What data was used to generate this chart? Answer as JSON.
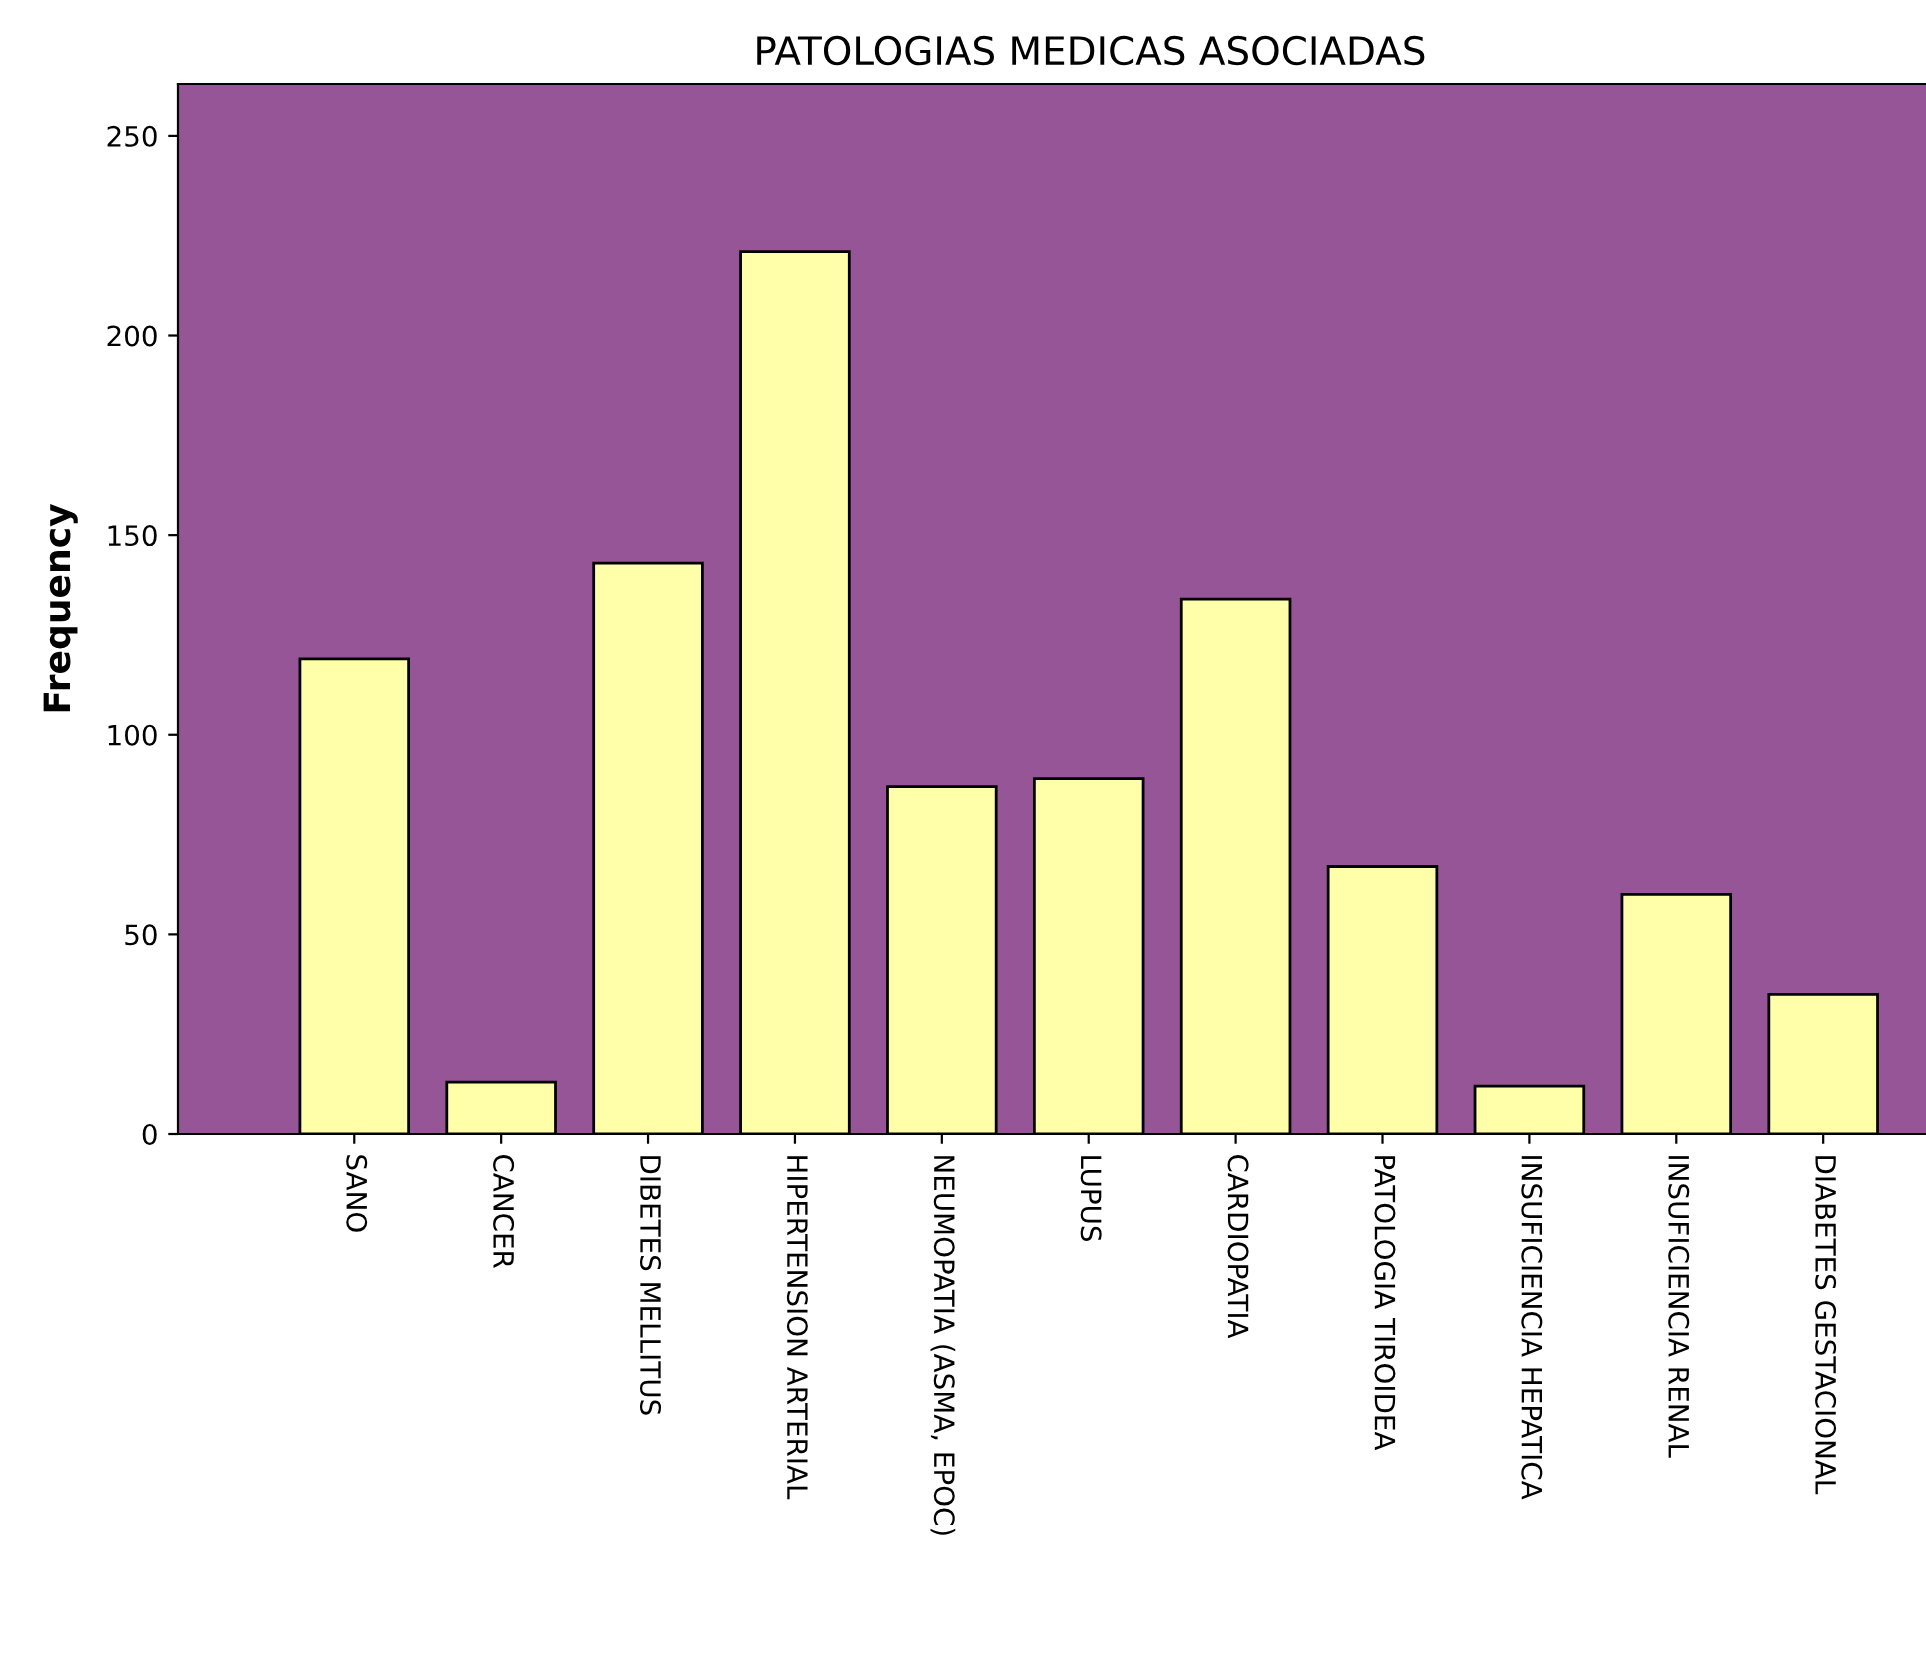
{
  "chart_data": {
    "type": "bar",
    "title": "PATOLOGIAS MEDICAS ASOCIADAS",
    "ylabel": "Frequency",
    "categories": [
      "SANO",
      "CANCER",
      "DIBETES MELLITUS",
      "HIPERTENSION ARTERIAL",
      "NEUMOPATIA (ASMA, EPOC)",
      "LUPUS",
      "CARDIOPATIA",
      "PATOLOGIA TIROIDEA",
      "INSUFICIENCIA HEPATICA",
      "INSUFICIENCIA RENAL",
      "DIABETES GESTACIONAL"
    ],
    "values": [
      119,
      13,
      143,
      221,
      87,
      89,
      134,
      67,
      12,
      60,
      35
    ],
    "color": "#ffffaa",
    "ylim": [
      0,
      263
    ],
    "yticks": [
      0,
      50,
      100,
      150,
      200,
      250
    ],
    "grid": false,
    "legend": false
  }
}
